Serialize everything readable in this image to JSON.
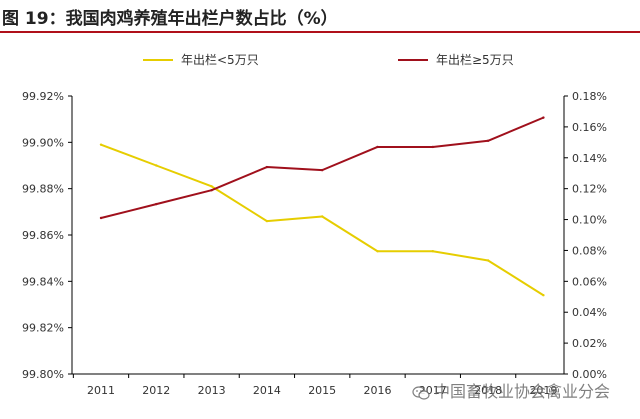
{
  "figure": {
    "title": "图 19：我国肉鸡养殖年出栏户数占比（%）",
    "watermark": "中国畜牧业协会禽业分会",
    "watermark_icon": "wechat-icon"
  },
  "colors": {
    "accent_rule": "#b0101a",
    "series_small": "#e6cd00",
    "series_large": "#a0101c",
    "axis": "#000000",
    "text": "#333333"
  },
  "chart_data": {
    "type": "line",
    "title": "我国肉鸡养殖年出栏户数占比（%）",
    "xlabel": "",
    "x": [
      "2011",
      "2012",
      "2013",
      "2014",
      "2015",
      "2016",
      "2017",
      "2018",
      "2019"
    ],
    "legend_position": "top",
    "grid": false,
    "y_left": {
      "ylim": [
        99.8,
        99.92
      ],
      "ticks": [
        99.8,
        99.82,
        99.84,
        99.86,
        99.88,
        99.9,
        99.92
      ],
      "tick_labels": [
        "99.80%",
        "99.82%",
        "99.84%",
        "99.86%",
        "99.88%",
        "99.90%",
        "99.92%"
      ]
    },
    "y_right": {
      "ylim": [
        0.0,
        0.18
      ],
      "ticks": [
        0.0,
        0.02,
        0.04,
        0.06,
        0.08,
        0.1,
        0.12,
        0.14,
        0.16,
        0.18
      ],
      "tick_labels": [
        "0.00%",
        "0.02%",
        "0.04%",
        "0.06%",
        "0.08%",
        "0.10%",
        "0.12%",
        "0.14%",
        "0.16%",
        "0.18%"
      ]
    },
    "series": [
      {
        "name": "年出栏<5万只",
        "axis": "left",
        "color": "#e6cd00",
        "values": [
          99.899,
          99.89,
          99.881,
          99.866,
          99.868,
          99.853,
          99.853,
          99.849,
          99.834
        ]
      },
      {
        "name": "年出栏≥5万只",
        "axis": "right",
        "color": "#a0101c",
        "values": [
          0.101,
          0.11,
          0.119,
          0.134,
          0.132,
          0.147,
          0.147,
          0.151,
          0.166
        ]
      }
    ]
  }
}
